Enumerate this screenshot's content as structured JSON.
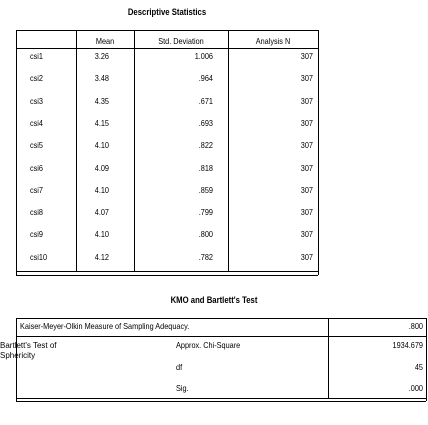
{
  "descriptives": {
    "title": "Descriptive Statistics",
    "columns": [
      "Mean",
      "Std. Deviation",
      "Analysis N"
    ],
    "rows": [
      [
        "csi1",
        "3.26",
        "1.006",
        "307"
      ],
      [
        "csi2",
        "3.48",
        ".964",
        "307"
      ],
      [
        "csi3",
        "4.35",
        ".671",
        "307"
      ],
      [
        "csi4",
        "4.15",
        ".693",
        "307"
      ],
      [
        "csi5",
        "4.10",
        ".822",
        "307"
      ],
      [
        "csi6",
        "4.09",
        ".818",
        "307"
      ],
      [
        "csi7",
        "4.10",
        ".859",
        "307"
      ],
      [
        "csi8",
        "4.07",
        ".799",
        "307"
      ],
      [
        "csi9",
        "4.10",
        ".800",
        "307"
      ],
      [
        "csi10",
        "4.12",
        ".782",
        "307"
      ]
    ]
  },
  "kmo": {
    "title": "KMO and Bartlett's Test",
    "kmo_label": "Kaiser-Meyer-Olkin Measure of Sampling Adequacy.",
    "kmo_value": ".800",
    "bartlett_label": "Bartlett's Test of Sphericity",
    "tests": [
      [
        "Approx. Chi-Square",
        "1934.679"
      ],
      [
        "df",
        "45"
      ],
      [
        "Sig.",
        ".000"
      ]
    ]
  }
}
